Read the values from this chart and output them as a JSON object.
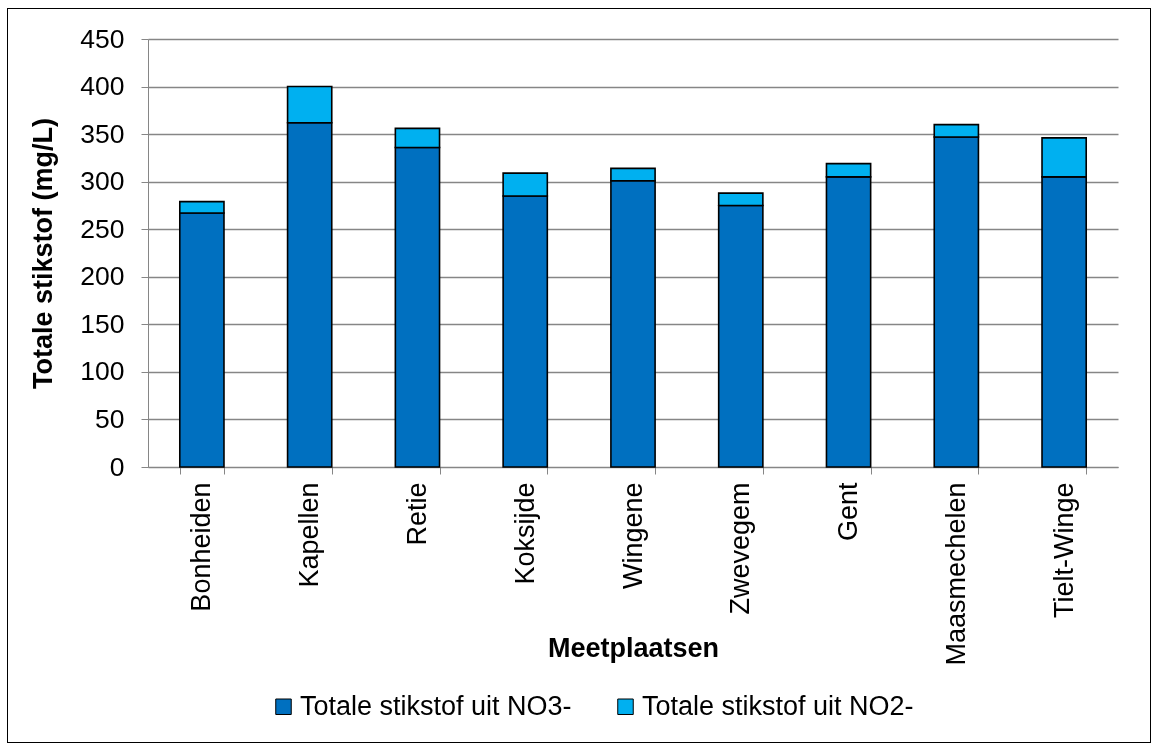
{
  "chart_data": {
    "type": "bar",
    "xlabel": "Meetplaatsen",
    "ylabel": "Totale stikstof (mg/L)",
    "categories": [
      "Bonheiden",
      "Kapellen",
      "Retie",
      "Koksijde",
      "Wingene",
      "Zwevegem",
      "Gent",
      "Maasmechelen",
      "Tielt-Winge"
    ],
    "series": [
      {
        "name": "Totale stikstof uit NO3-",
        "color": "#0070c0",
        "values": [
          267,
          362,
          336,
          285,
          301,
          275,
          305,
          347,
          305
        ]
      },
      {
        "name": "Totale stikstof uit NO2-",
        "color": "#00b0f0",
        "values": [
          12,
          38,
          20,
          24,
          13,
          13,
          14,
          13,
          41
        ]
      }
    ],
    "stacked": true,
    "ylim": [
      0,
      450
    ],
    "yticks": [
      0,
      50,
      100,
      150,
      200,
      250,
      300,
      350,
      400,
      450
    ],
    "grid": "y",
    "legend": "bottom"
  }
}
